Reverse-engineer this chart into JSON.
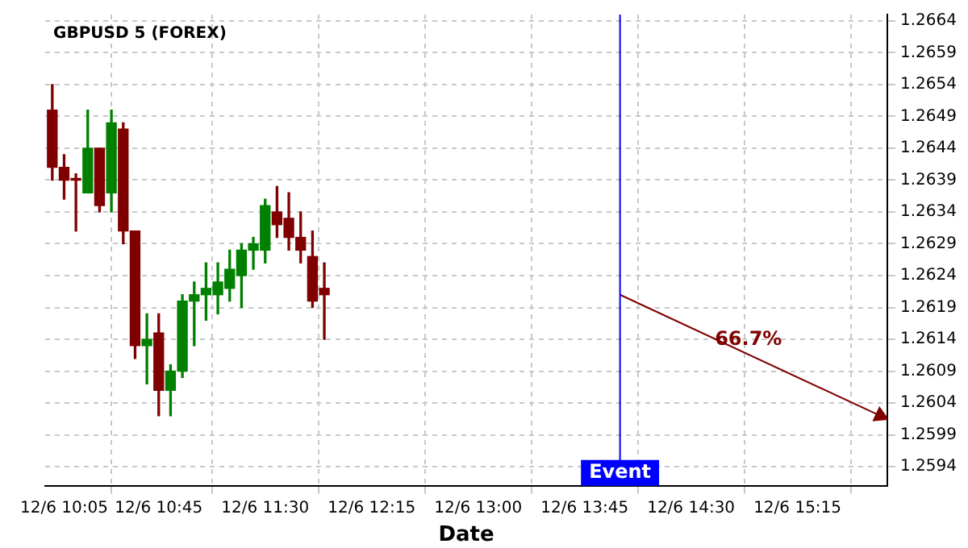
{
  "chart_data": {
    "type": "candlestick",
    "title": "GBPUSD 5 (FOREX)",
    "xlabel": "Date",
    "x": [
      "--12-06T10:00",
      "--12-06T10:05",
      "--12-06T10:10",
      "--12-06T10:15",
      "--12-06T10:20",
      "--12-06T10:25",
      "--12-06T10:30",
      "--12-06T10:35",
      "--12-06T10:40",
      "--12-06T10:45",
      "--12-06T10:50",
      "--12-06T10:55",
      "--12-06T11:00",
      "--12-06T11:05",
      "--12-06T11:10",
      "--12-06T11:15",
      "--12-06T11:20",
      "--12-06T11:25",
      "--12-06T11:30",
      "--12-06T11:35",
      "--12-06T11:40",
      "--12-06T11:45",
      "--12-06T11:50",
      "--12-06T11:55"
    ],
    "ohlc": [
      [
        1.265,
        1.2654,
        1.2639,
        1.2641
      ],
      [
        1.2641,
        1.2643,
        1.2636,
        1.2639
      ],
      [
        1.2639,
        1.264,
        1.2631,
        1.2639
      ],
      [
        1.2637,
        1.265,
        1.2637,
        1.2644
      ],
      [
        1.2644,
        1.2644,
        1.2634,
        1.2635
      ],
      [
        1.2637,
        1.265,
        1.2634,
        1.2648
      ],
      [
        1.2647,
        1.2648,
        1.2629,
        1.2631
      ],
      [
        1.2631,
        1.2631,
        1.2611,
        1.2613
      ],
      [
        1.2613,
        1.2618,
        1.2607,
        1.2614
      ],
      [
        1.2615,
        1.2618,
        1.2602,
        1.2606
      ],
      [
        1.2606,
        1.261,
        1.2602,
        1.2609
      ],
      [
        1.2609,
        1.2621,
        1.2608,
        1.262
      ],
      [
        1.262,
        1.2623,
        1.2613,
        1.2621
      ],
      [
        1.2621,
        1.2626,
        1.2617,
        1.2622
      ],
      [
        1.2621,
        1.2626,
        1.2618,
        1.2623
      ],
      [
        1.2622,
        1.2628,
        1.262,
        1.2625
      ],
      [
        1.2624,
        1.2629,
        1.2619,
        1.2628
      ],
      [
        1.2628,
        1.263,
        1.2625,
        1.2629
      ],
      [
        1.2628,
        1.2636,
        1.2626,
        1.2635
      ],
      [
        1.2634,
        1.2638,
        1.263,
        1.2632
      ],
      [
        1.2633,
        1.2637,
        1.2628,
        1.263
      ],
      [
        1.263,
        1.2634,
        1.2626,
        1.2628
      ],
      [
        1.2627,
        1.2631,
        1.2619,
        1.262
      ],
      [
        1.2622,
        1.2626,
        1.2614,
        1.2621
      ]
    ],
    "colors": [
      "#800000",
      "#800000",
      "#800000",
      "#008000",
      "#800000",
      "#008000",
      "#800000",
      "#800000",
      "#008000",
      "#800000",
      "#008000",
      "#008000",
      "#008000",
      "#008000",
      "#008000",
      "#008000",
      "#008000",
      "#008000",
      "#008000",
      "#800000",
      "#800000",
      "#800000",
      "#800000",
      "#800000"
    ],
    "series": [
      {
        "type": "line",
        "x": [
          "--12-06T14:00",
          "--12-06T15:50"
        ],
        "values": [
          1.2621,
          1.2602
        ],
        "color": "#800000"
      }
    ],
    "ref_lines": [
      {
        "axis": "x",
        "value": "--12-06T14:00",
        "label": "Event",
        "color": "#0000ff"
      }
    ],
    "annotations": [
      "66.7%"
    ],
    "xlim": [
      "--12-06T09:57",
      "--12-06T15:53"
    ],
    "xticks": [
      {
        "value": "--12-06T10:05",
        "label": "12/6 10:05"
      },
      {
        "value": "--12-06T10:45",
        "label": "12/6 10:45"
      },
      {
        "value": "--12-06T11:30",
        "label": "12/6 11:30"
      },
      {
        "value": "--12-06T12:15",
        "label": "12/6 12:15"
      },
      {
        "value": "--12-06T13:00",
        "label": "12/6 13:00"
      },
      {
        "value": "--12-06T13:45",
        "label": "12/6 13:45"
      },
      {
        "value": "--12-06T14:30",
        "label": "12/6 14:30"
      },
      {
        "value": "--12-06T15:15",
        "label": "12/6 15:15"
      }
    ],
    "ylim": [
      1.2591,
      1.2665
    ],
    "yticks": [
      1.2594,
      1.2599,
      1.2604,
      1.2609,
      1.2614,
      1.2619,
      1.2624,
      1.2629,
      1.2634,
      1.2639,
      1.2644,
      1.2649,
      1.2654,
      1.2659,
      1.2664
    ],
    "grid": true
  }
}
